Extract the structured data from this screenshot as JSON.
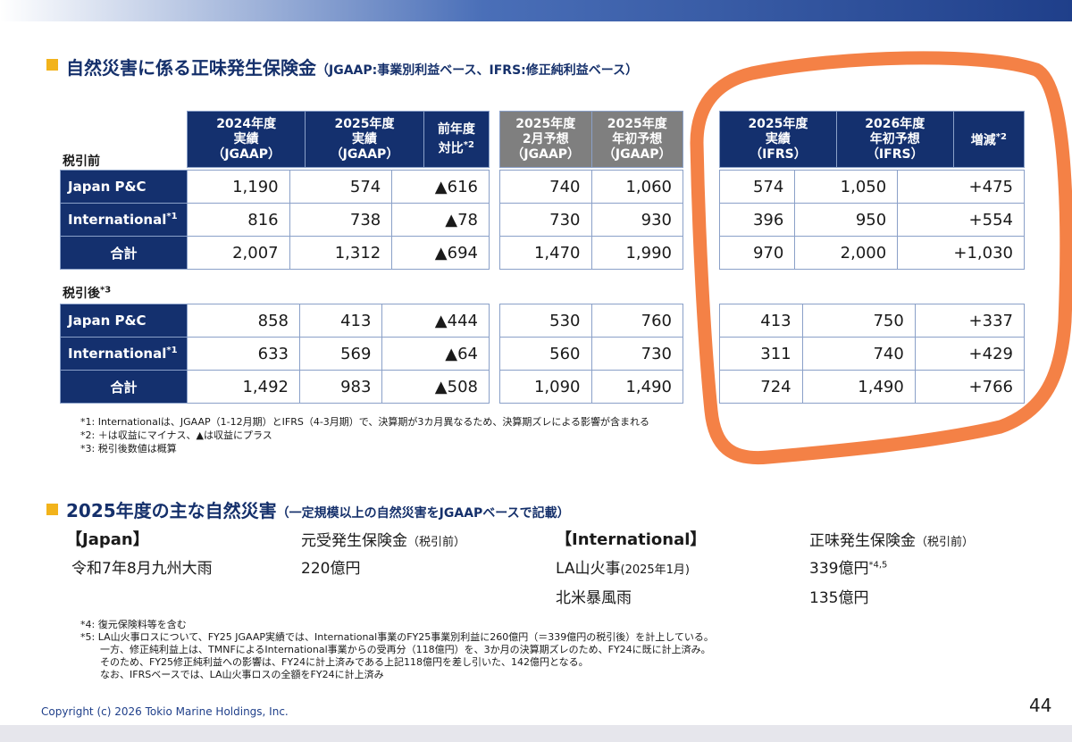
{
  "section1": {
    "title": "自然災害に係る正味発生保険金",
    "subtitle": "（JGAAP:事業別利益ベース、IFRS:修正純利益ベース）"
  },
  "labels": {
    "pretax": "税引前",
    "posttax": "税引後",
    "posttax_sup": "*3"
  },
  "rows": [
    {
      "label": "Japan P&C",
      "sup": ""
    },
    {
      "label": "International",
      "sup": "*1"
    },
    {
      "label": "合計",
      "sup": ""
    }
  ],
  "group_a": {
    "headers": [
      {
        "lines": [
          "2024年度",
          "実績",
          "（JGAAP）"
        ],
        "sup": ""
      },
      {
        "lines": [
          "2025年度",
          "実績",
          "（JGAAP）"
        ],
        "sup": ""
      },
      {
        "lines": [
          "前年度",
          "対比"
        ],
        "sup": "*2"
      }
    ],
    "pretax": [
      [
        "1,190",
        "574",
        "▲616"
      ],
      [
        "816",
        "738",
        "▲78"
      ],
      [
        "2,007",
        "1,312",
        "▲694"
      ]
    ],
    "posttax": [
      [
        "858",
        "413",
        "▲444"
      ],
      [
        "633",
        "569",
        "▲64"
      ],
      [
        "1,492",
        "983",
        "▲508"
      ]
    ]
  },
  "group_b": {
    "headers": [
      {
        "lines": [
          "2025年度",
          "2月予想",
          "（JGAAP）"
        ],
        "sup": ""
      },
      {
        "lines": [
          "2025年度",
          "年初予想",
          "（JGAAP）"
        ],
        "sup": ""
      }
    ],
    "pretax": [
      [
        "740",
        "1,060"
      ],
      [
        "730",
        "930"
      ],
      [
        "1,470",
        "1,990"
      ]
    ],
    "posttax": [
      [
        "530",
        "760"
      ],
      [
        "560",
        "730"
      ],
      [
        "1,090",
        "1,490"
      ]
    ]
  },
  "group_c": {
    "headers": [
      {
        "lines": [
          "2025年度",
          "実績",
          "（IFRS）"
        ],
        "sup": ""
      },
      {
        "lines": [
          "2026年度",
          "年初予想",
          "（IFRS）"
        ],
        "sup": ""
      },
      {
        "lines": [
          "増減"
        ],
        "sup": "*2"
      }
    ],
    "pretax": [
      [
        "574",
        "1,050",
        "+475"
      ],
      [
        "396",
        "950",
        "+554"
      ],
      [
        "970",
        "2,000",
        "+1,030"
      ]
    ],
    "posttax": [
      [
        "413",
        "750",
        "+337"
      ],
      [
        "311",
        "740",
        "+429"
      ],
      [
        "724",
        "1,490",
        "+766"
      ]
    ]
  },
  "notes1": [
    "*1: Internationalは、JGAAP（1-12月期）とIFRS（4-3月期）で、決算期が3カ月異なるため、決算期ズレによる影響が含まれる",
    "*2: ＋は収益にマイナス、▲は収益にプラス",
    "*3: 税引後数値は概算"
  ],
  "section2": {
    "title": "2025年度の主な自然災害",
    "subtitle": "（一定規模以上の自然災害をJGAAPベースで記載）",
    "japan_header": "【Japan】",
    "japan_col_label": "元受発生保険金",
    "japan_col_sub": "（税引前）",
    "japan_event": "令和7年8月九州大雨",
    "japan_amount": "220億円",
    "intl_header": "【International】",
    "intl_col_label": "正味発生保険金",
    "intl_col_sub": "（税引前）",
    "intl_event1": "LA山火事",
    "intl_event1_date": "(2025年1月)",
    "intl_amount1": "339億円",
    "intl_amount1_sup": "*4,5",
    "intl_event2": "北米暴風雨",
    "intl_amount2": "135億円"
  },
  "notes2": [
    "*4: 復元保険料等を含む",
    "*5: LA山火事ロスについて、FY25 JGAAP実績では、International事業のFY25事業別利益に260億円（＝339億円の税引後）を計上している。",
    "一方、修正純利益上は、TMNFによるInternational事業からの受再分（118億円）を、3か月の決算期ズレのため、FY24に既に計上済み。",
    "そのため、FY25修正純利益への影響は、FY24に計上済みである上記118億円を差し引いた、142億円となる。",
    "なお、IFRSベースでは、LA山火事ロスの全額をFY24に計上済み"
  ],
  "footer": {
    "copyright": "Copyright (c) 2026 Tokio Marine Holdings, Inc.",
    "page": "44"
  },
  "colors": {
    "navy": "#14306e",
    "gray": "#7f7f7f",
    "accent": "#f2b31b",
    "highlight": "#f37a3c"
  }
}
